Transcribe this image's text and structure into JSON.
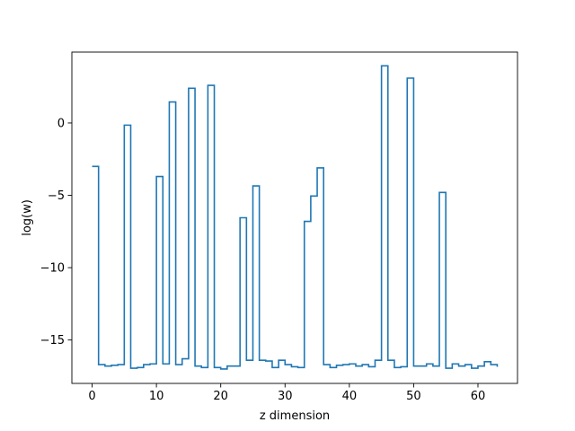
{
  "chart_data": {
    "type": "line",
    "drawstyle": "steps-post",
    "title": "",
    "xlabel": "z dimension",
    "ylabel": "log(w)",
    "xlim": [
      -3.15,
      66.15
    ],
    "ylim": [
      -18.0,
      4.9
    ],
    "xticks": [
      0,
      10,
      20,
      30,
      40,
      50,
      60
    ],
    "yticks": [
      -15,
      -10,
      -5,
      0
    ],
    "grid": false,
    "legend": "none",
    "series": [
      {
        "color": "#1f77b4",
        "x": [
          0,
          1,
          2,
          3,
          4,
          5,
          6,
          7,
          8,
          9,
          10,
          11,
          12,
          13,
          14,
          15,
          16,
          17,
          18,
          19,
          20,
          21,
          22,
          23,
          24,
          25,
          26,
          27,
          28,
          29,
          30,
          31,
          32,
          33,
          34,
          35,
          36,
          37,
          38,
          39,
          40,
          41,
          42,
          43,
          44,
          45,
          46,
          47,
          48,
          49,
          50,
          51,
          52,
          53,
          54,
          55,
          56,
          57,
          58,
          59,
          60,
          61,
          62,
          63
        ],
        "y": [
          -3.0,
          -16.7,
          -16.8,
          -16.75,
          -16.7,
          -0.15,
          -16.95,
          -16.9,
          -16.7,
          -16.65,
          -3.7,
          -16.65,
          1.45,
          -16.7,
          -16.3,
          2.4,
          -16.8,
          -16.9,
          2.6,
          -16.9,
          -17.0,
          -16.8,
          -16.8,
          -6.55,
          -16.4,
          -4.35,
          -16.4,
          -16.45,
          -16.9,
          -16.4,
          -16.7,
          -16.85,
          -16.9,
          -6.8,
          -5.05,
          -3.1,
          -16.7,
          -16.9,
          -16.75,
          -16.7,
          -16.65,
          -16.8,
          -16.7,
          -16.85,
          -16.4,
          3.95,
          -16.4,
          -16.9,
          -16.85,
          3.1,
          -16.8,
          -16.8,
          -16.65,
          -16.8,
          -4.8,
          -16.95,
          -16.65,
          -16.8,
          -16.7,
          -16.95,
          -16.8,
          -16.5,
          -16.7,
          -16.85
        ]
      }
    ]
  }
}
